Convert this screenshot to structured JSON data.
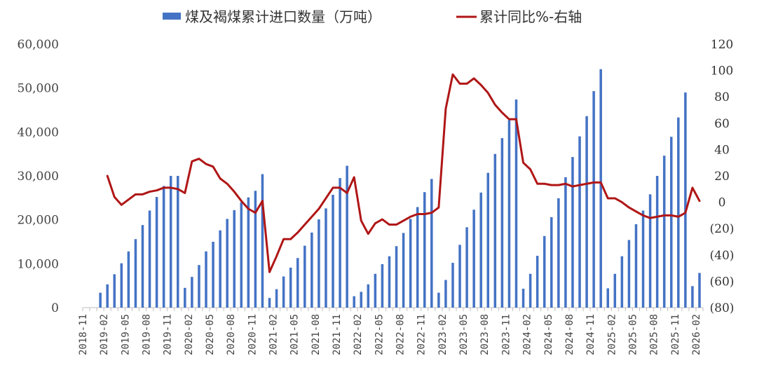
{
  "chart_data": {
    "type": "bar+line",
    "legend": {
      "placement": "top",
      "bar_label": "煤及褐煤累计进口数量（万吨）",
      "line_label": "累计同比%-右轴"
    },
    "colors": {
      "bar": "#4472C4",
      "line": "#B01616",
      "negative_tick": "#C00000",
      "axis": "#BFBFBF"
    },
    "left_axis": {
      "min": 0,
      "max": 60000,
      "ticks": [
        "0",
        "10,000",
        "20,000",
        "30,000",
        "40,000",
        "50,000",
        "60,000"
      ]
    },
    "right_axis": {
      "min": -80,
      "max": 120,
      "ticks": [
        "(80)",
        "(60)",
        "(40)",
        "(20)",
        "0",
        "20",
        "40",
        "60",
        "80",
        "100",
        "120"
      ]
    },
    "x_tick_labels": [
      "2018-11",
      "2019-02",
      "2019-05",
      "2019-08",
      "2019-11",
      "2020-02",
      "2020-05",
      "2020-08",
      "2020-11",
      "2021-02",
      "2021-05",
      "2021-08",
      "2021-11",
      "2022-02",
      "2022-05",
      "2022-08",
      "2022-11",
      "2023-02",
      "2023-05",
      "2023-08",
      "2023-11",
      "2024-02",
      "2024-05",
      "2024-08",
      "2024-11",
      "2025-02",
      "2025-05",
      "2025-08",
      "2025-11",
      "2026-02"
    ],
    "months": [
      "2018-11",
      "2018-12",
      "2019-01",
      "2019-02",
      "2019-03",
      "2019-04",
      "2019-05",
      "2019-06",
      "2019-07",
      "2019-08",
      "2019-09",
      "2019-10",
      "2019-11",
      "2019-12",
      "2020-01",
      "2020-02",
      "2020-03",
      "2020-04",
      "2020-05",
      "2020-06",
      "2020-07",
      "2020-08",
      "2020-09",
      "2020-10",
      "2020-11",
      "2020-12",
      "2021-01",
      "2021-02",
      "2021-03",
      "2021-04",
      "2021-05",
      "2021-06",
      "2021-07",
      "2021-08",
      "2021-09",
      "2021-10",
      "2021-11",
      "2021-12",
      "2022-01",
      "2022-02",
      "2022-03",
      "2022-04",
      "2022-05",
      "2022-06",
      "2022-07",
      "2022-08",
      "2022-09",
      "2022-10",
      "2022-11",
      "2022-12",
      "2023-01",
      "2023-02",
      "2023-03",
      "2023-04",
      "2023-05",
      "2023-06",
      "2023-07",
      "2023-08",
      "2023-09",
      "2023-10",
      "2023-11",
      "2023-12",
      "2024-01",
      "2024-02",
      "2024-03",
      "2024-04",
      "2024-05",
      "2024-06",
      "2024-07",
      "2024-08",
      "2024-09",
      "2024-10",
      "2024-11",
      "2024-12",
      "2025-01",
      "2025-02",
      "2025-03",
      "2025-04",
      "2025-05",
      "2025-06",
      "2025-07",
      "2025-08",
      "2025-09",
      "2025-10",
      "2025-11",
      "2025-12",
      "2026-01",
      "2026-02"
    ],
    "series": [
      {
        "name": "煤及褐煤累计进口数量（万吨）",
        "kind": "bar",
        "axis": "left",
        "values": [
          null,
          null,
          3400,
          5300,
          7600,
          10100,
          12800,
          15600,
          18800,
          22100,
          25200,
          27700,
          30000,
          30000,
          4500,
          7000,
          9700,
          12800,
          15000,
          17600,
          20200,
          22200,
          24000,
          25100,
          26600,
          30400,
          2200,
          4200,
          7100,
          9100,
          11300,
          14100,
          17100,
          20100,
          22600,
          25700,
          29500,
          32300,
          2600,
          3600,
          5300,
          7700,
          9900,
          11700,
          14000,
          17000,
          20200,
          22900,
          26300,
          29300,
          3400,
          6300,
          10200,
          14300,
          18300,
          22300,
          26200,
          30700,
          35000,
          38600,
          42700,
          47400,
          4300,
          7700,
          11800,
          16300,
          20600,
          24900,
          29700,
          34300,
          39000,
          43600,
          49300,
          54300,
          4400,
          7700,
          11700,
          15400,
          19000,
          22100,
          25800,
          30000,
          34600,
          38900,
          43300,
          49000,
          4900,
          7900
        ]
      },
      {
        "name": "累计同比%-右轴",
        "kind": "line",
        "axis": "right",
        "values": [
          null,
          null,
          null,
          20,
          4,
          -2,
          2,
          6,
          6,
          8,
          9,
          11,
          11,
          10,
          7,
          31,
          33,
          29,
          27,
          18,
          14,
          8,
          1,
          -5,
          -8,
          1,
          -53,
          -41,
          -28,
          -28,
          -23,
          -17,
          -11,
          -5,
          3,
          11,
          11,
          7,
          19,
          -14,
          -24,
          -16,
          -13,
          -17,
          -17,
          -14,
          -11,
          -9,
          -9,
          -8,
          -4,
          71,
          97,
          90,
          90,
          94,
          89,
          83,
          74,
          68,
          63,
          63,
          30,
          25,
          14,
          14,
          13,
          13,
          14,
          12,
          13,
          14,
          15,
          15,
          3,
          3,
          0,
          -4,
          -7,
          -10,
          -12,
          -11,
          -10,
          -10,
          -11,
          -8,
          11,
          1
        ]
      }
    ]
  }
}
